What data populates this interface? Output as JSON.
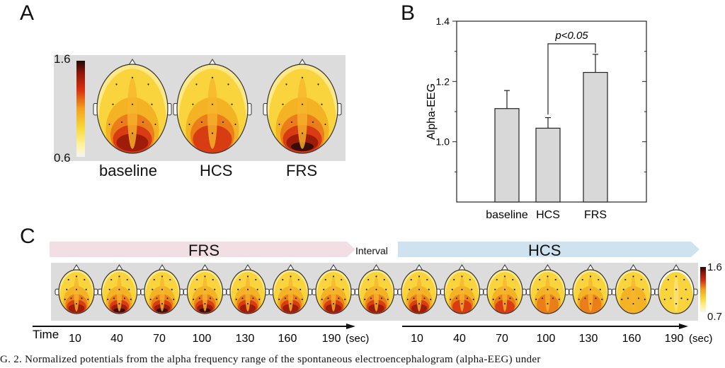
{
  "panels": {
    "a": "A",
    "b": "B",
    "c": "C"
  },
  "panel_a": {
    "scale_max": "1.6",
    "scale_min": "0.6",
    "labels": [
      "baseline",
      "HCS",
      "FRS"
    ]
  },
  "chart_data": {
    "type": "bar",
    "categories": [
      "baseline",
      "HCS",
      "FRS"
    ],
    "values": [
      1.11,
      1.045,
      1.23
    ],
    "errors": [
      0.06,
      0.035,
      0.06
    ],
    "title": "",
    "xlabel": "",
    "ylabel": "Alpha-EEG",
    "ylim": [
      0.8,
      1.4
    ],
    "yticks": [
      "1.0",
      "1.2",
      "1.4"
    ],
    "annotation": "p<0.05",
    "grid": false,
    "bar_color": "#d8d8d8"
  },
  "panel_c": {
    "frs_label": "FRS",
    "interval_label": "Interval",
    "hcs_label": "HCS",
    "scale_max": "1.6",
    "scale_min": "0.7",
    "time_label": "Time",
    "times_1": [
      "10",
      "40",
      "70",
      "100",
      "130",
      "160",
      "190"
    ],
    "times_2": [
      "10",
      "40",
      "70",
      "100",
      "130",
      "160",
      "190"
    ],
    "unit": "(sec)",
    "frs_color": "#f2dfe3",
    "hcs_color": "#cfe2ef"
  },
  "caption": "G. 2.    Normalized potentials from the alpha frequency range of the spontaneous electroencephalogram (alpha-EEG) under"
}
